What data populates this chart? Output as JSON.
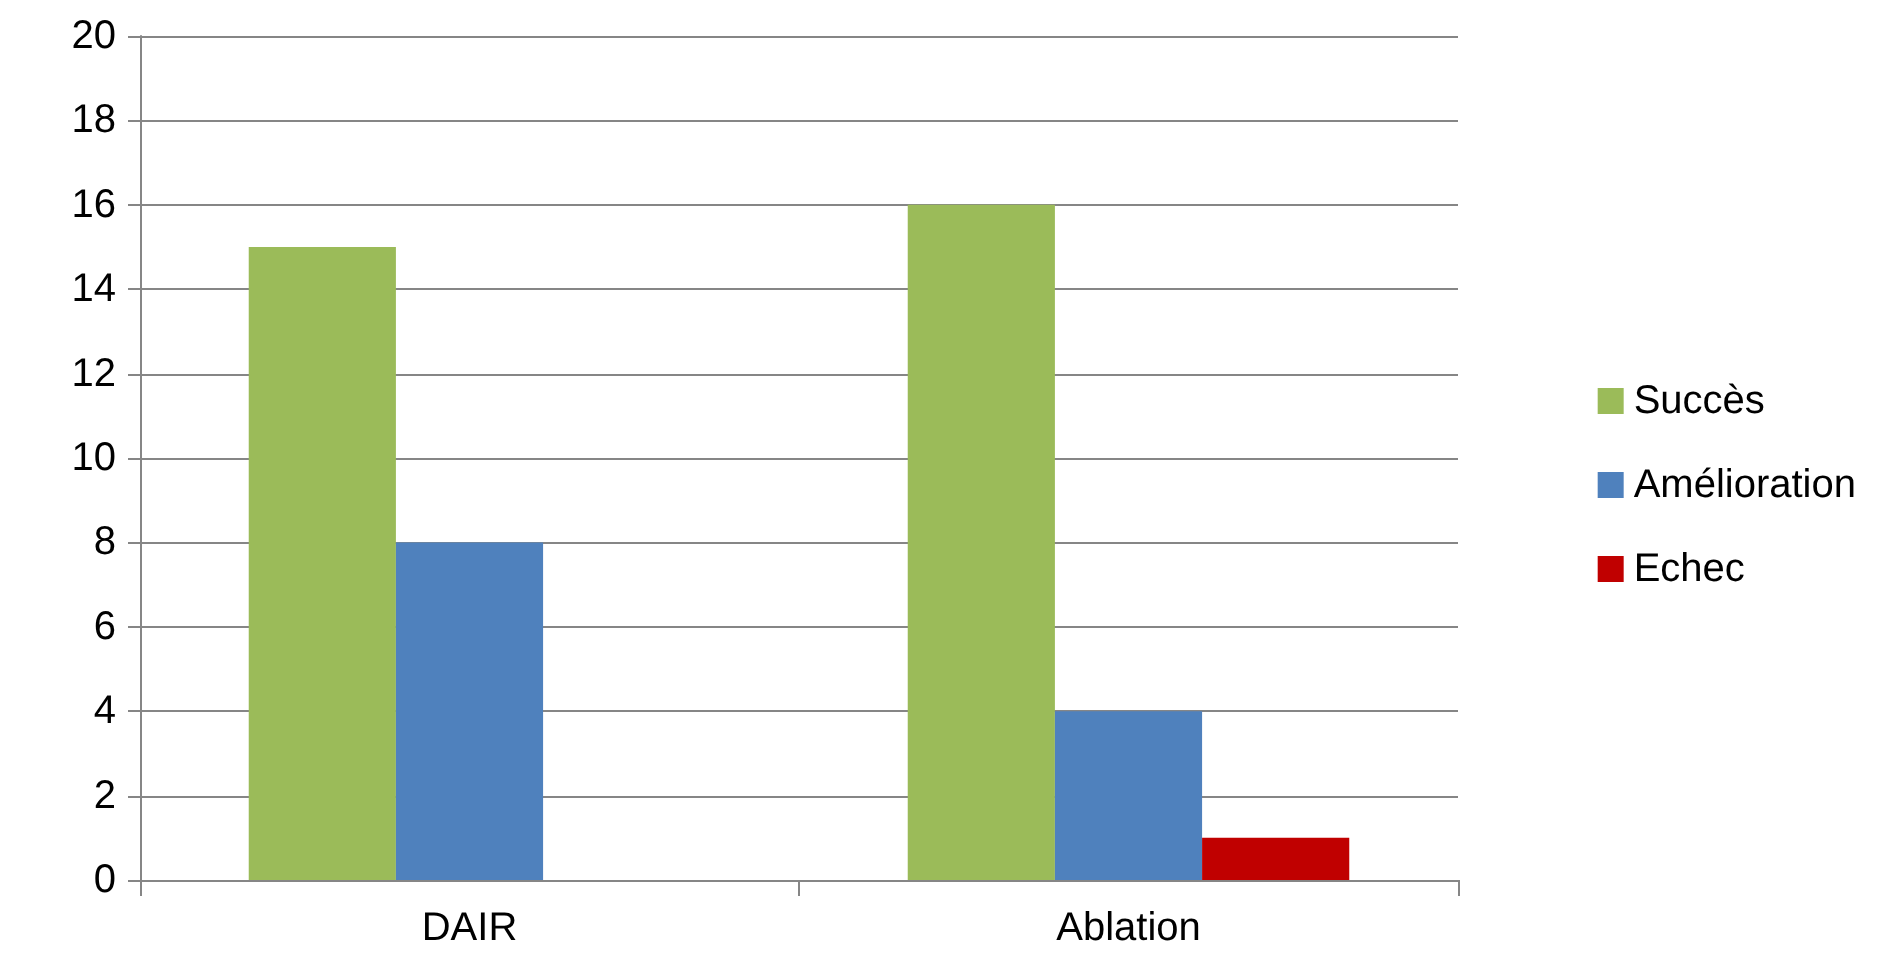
{
  "chart_data": {
    "type": "bar",
    "categories": [
      "DAIR",
      "Ablation"
    ],
    "series": [
      {
        "name": "Succès",
        "color": "#9bbb59",
        "values": [
          15,
          16
        ]
      },
      {
        "name": "Amélioration",
        "color": "#4f81bd",
        "values": [
          8,
          4
        ]
      },
      {
        "name": "Echec",
        "color": "#c00000",
        "values": [
          0,
          1
        ]
      }
    ],
    "ylim": [
      0,
      20
    ],
    "yticks": [
      0,
      2,
      4,
      6,
      8,
      10,
      12,
      14,
      16,
      18,
      20
    ],
    "grid": "y",
    "legend": "right"
  }
}
